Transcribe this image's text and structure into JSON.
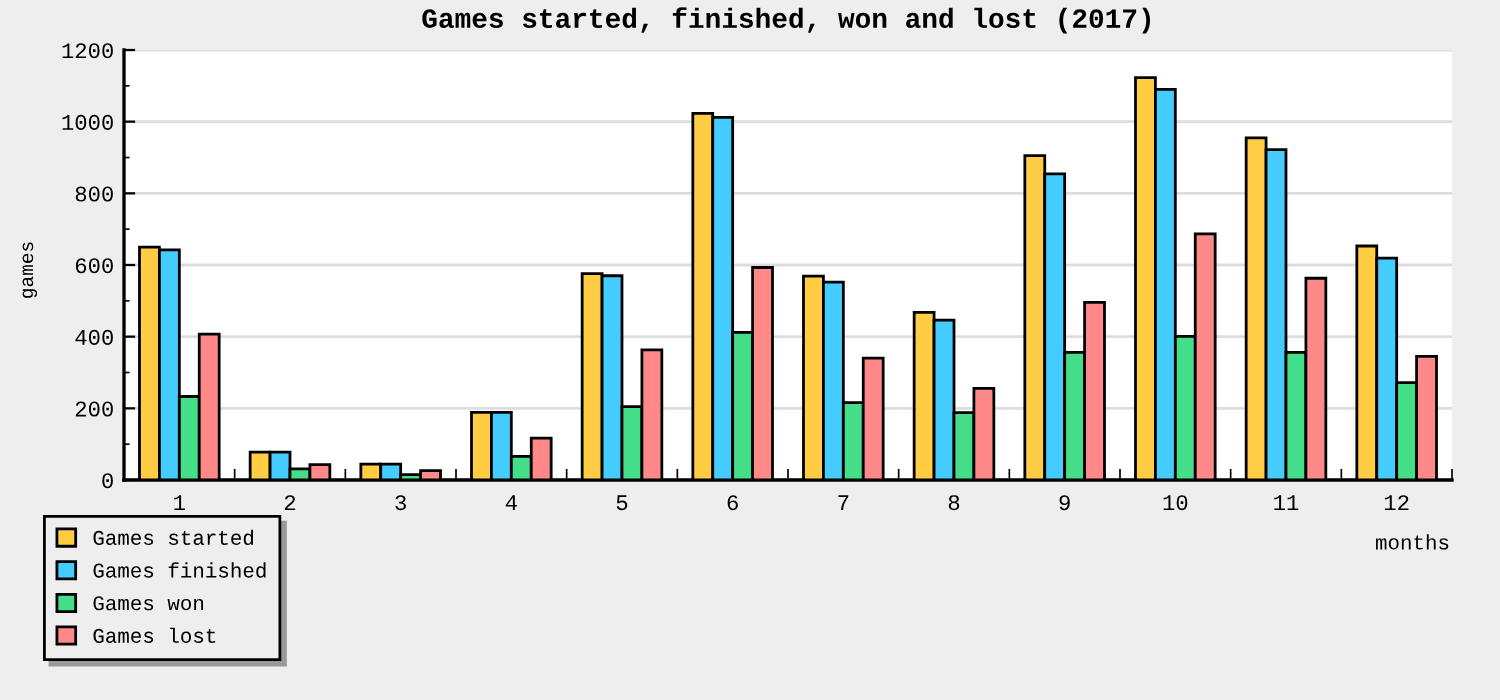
{
  "chart_data": {
    "type": "bar",
    "title": "Games started, finished, won and lost (2017)",
    "xlabel": "months",
    "ylabel": "games",
    "categories": [
      "1",
      "2",
      "3",
      "4",
      "5",
      "6",
      "7",
      "8",
      "9",
      "10",
      "11",
      "12"
    ],
    "series": [
      {
        "name": "Games started",
        "color": "#ffcc44",
        "values": [
          650,
          78,
          44,
          189,
          576,
          1023,
          569,
          468,
          905,
          1123,
          955,
          653
        ]
      },
      {
        "name": "Games finished",
        "color": "#44ccff",
        "values": [
          642,
          78,
          44,
          189,
          570,
          1012,
          552,
          446,
          854,
          1090,
          922,
          619
        ]
      },
      {
        "name": "Games won",
        "color": "#44dd88",
        "values": [
          233,
          31,
          15,
          66,
          205,
          412,
          216,
          188,
          356,
          401,
          356,
          272
        ]
      },
      {
        "name": "Games lost",
        "color": "#ff8888",
        "values": [
          407,
          43,
          26,
          117,
          363,
          593,
          340,
          256,
          496,
          687,
          563,
          345
        ]
      }
    ],
    "ylim": [
      0,
      1200
    ],
    "yticks": [
      0,
      200,
      400,
      600,
      800,
      1000,
      1200
    ],
    "grid": "y",
    "legend": "bottom left"
  }
}
